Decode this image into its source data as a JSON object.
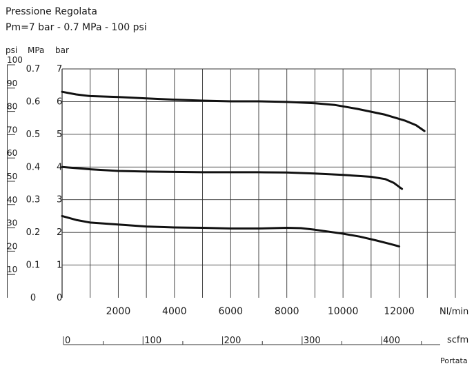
{
  "chart_data": {
    "type": "line",
    "title": "Pressione Regolata",
    "subtitle": "Pm=7 bar - 0.7 MPa - 100 psi",
    "units": {
      "psi": "psi",
      "mpa": "MPa",
      "bar": "bar"
    },
    "y_bar_ticks": [
      "0",
      "1",
      "2",
      "3",
      "4",
      "5",
      "6",
      "7"
    ],
    "y_mpa_ticks": [
      "0",
      "0.1",
      "0.2",
      "0.3",
      "0.4",
      "0.5",
      "0.6",
      "0.7"
    ],
    "y_psi_ticks": [
      "10",
      "20",
      "30",
      "40",
      "50",
      "60",
      "70",
      "80",
      "90",
      "100"
    ],
    "x_ticks": [
      "2000",
      "4000",
      "6000",
      "8000",
      "10000",
      "12000"
    ],
    "xlabel": "Nl/min",
    "scfm_ticks": [
      "0",
      "100",
      "200",
      "300",
      "400"
    ],
    "scfm_label": "scfm",
    "footer_label": "Portata",
    "xlim": [
      0,
      14000
    ],
    "ylim": [
      0,
      7
    ],
    "grid": true,
    "line_color": "#111111",
    "series": [
      {
        "x": [
          0,
          500,
          1000,
          2000,
          3000,
          4000,
          5000,
          6000,
          7000,
          8000,
          9000,
          9700,
          10500,
          11500,
          12200,
          12600,
          12900
        ],
        "values": [
          6.3,
          6.22,
          6.17,
          6.14,
          6.1,
          6.06,
          6.03,
          6.01,
          6.01,
          5.99,
          5.95,
          5.9,
          5.78,
          5.6,
          5.42,
          5.28,
          5.1
        ]
      },
      {
        "x": [
          0,
          1000,
          2000,
          3000,
          4000,
          5000,
          6000,
          7000,
          8000,
          9000,
          10000,
          11000,
          11500,
          11800,
          12100
        ],
        "values": [
          4.0,
          3.93,
          3.88,
          3.86,
          3.85,
          3.84,
          3.84,
          3.84,
          3.83,
          3.8,
          3.76,
          3.7,
          3.63,
          3.52,
          3.33
        ]
      },
      {
        "x": [
          0,
          500,
          1000,
          2000,
          3000,
          4000,
          5000,
          6000,
          7000,
          8000,
          8500,
          9000,
          10000,
          10600,
          11200,
          11700,
          12000
        ],
        "values": [
          2.5,
          2.38,
          2.3,
          2.24,
          2.18,
          2.15,
          2.14,
          2.12,
          2.12,
          2.14,
          2.13,
          2.08,
          1.96,
          1.87,
          1.75,
          1.64,
          1.57
        ]
      }
    ]
  }
}
